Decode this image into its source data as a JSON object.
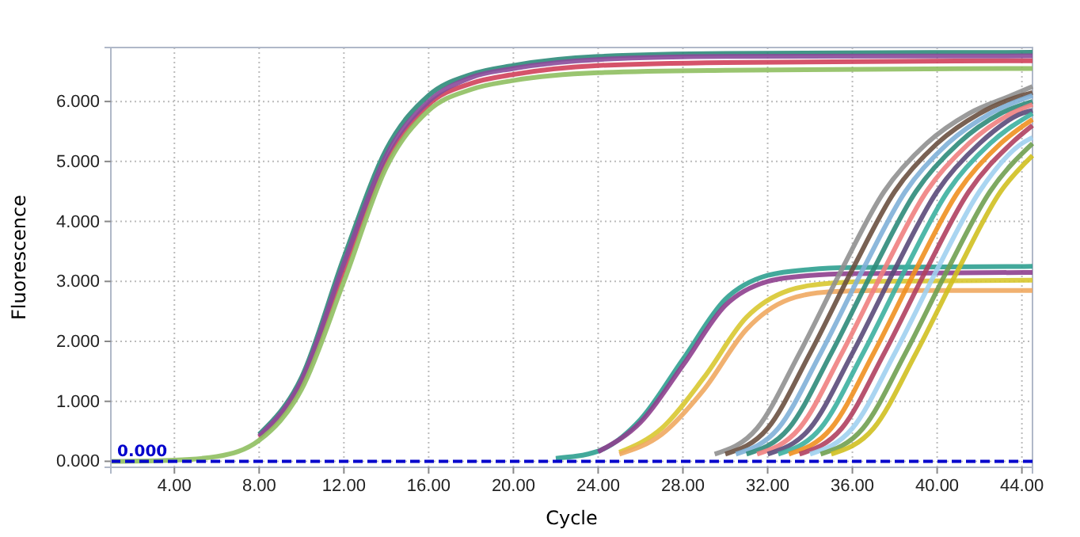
{
  "chart_data": {
    "type": "line",
    "xlabel": "Cycle",
    "ylabel": "Fluorescence",
    "xlim": [
      1,
      44.5
    ],
    "ylim": [
      -0.1,
      6.9
    ],
    "xticks": [
      {
        "value": 4,
        "label": "4.00"
      },
      {
        "value": 8,
        "label": "8.00"
      },
      {
        "value": 12,
        "label": "12.00"
      },
      {
        "value": 16,
        "label": "16.00"
      },
      {
        "value": 20,
        "label": "20.00"
      },
      {
        "value": 24,
        "label": "24.00"
      },
      {
        "value": 28,
        "label": "28.00"
      },
      {
        "value": 32,
        "label": "32.00"
      },
      {
        "value": 36,
        "label": "36.00"
      },
      {
        "value": 40,
        "label": "40.00"
      },
      {
        "value": 44,
        "label": "44.00"
      }
    ],
    "yticks": [
      {
        "value": 0,
        "label": "0.000"
      },
      {
        "value": 1,
        "label": "1.000"
      },
      {
        "value": 2,
        "label": "2.000"
      },
      {
        "value": 3,
        "label": "3.000"
      },
      {
        "value": 4,
        "label": "4.000"
      },
      {
        "value": 5,
        "label": "5.000"
      },
      {
        "value": 6,
        "label": "6.000"
      }
    ],
    "grid": true,
    "marker": "none",
    "line_style": "solid",
    "ref_lines": [
      {
        "axis": "y",
        "value": 0,
        "label": "0.000",
        "color": "#0000cc",
        "line_style": "dashed"
      }
    ],
    "series": [
      {
        "color": "#2e8b7a",
        "x": [
          8,
          10,
          12,
          14,
          16,
          18,
          20,
          24,
          30,
          44.5
        ],
        "values": [
          0.45,
          1.4,
          3.4,
          5.2,
          6.1,
          6.45,
          6.6,
          6.75,
          6.8,
          6.82
        ]
      },
      {
        "color": "#d0405a",
        "x": [
          8,
          10,
          12,
          14,
          16,
          18,
          20,
          24,
          30,
          44.5
        ],
        "values": [
          0.4,
          1.3,
          3.2,
          5.0,
          5.95,
          6.3,
          6.45,
          6.6,
          6.65,
          6.68
        ]
      },
      {
        "color": "#8a4a9a",
        "x": [
          8,
          10,
          12,
          14,
          16,
          18,
          20,
          24,
          30,
          44.5
        ],
        "values": [
          0.42,
          1.35,
          3.3,
          5.1,
          6.0,
          6.4,
          6.55,
          6.7,
          6.75,
          6.76
        ]
      },
      {
        "color": "#8fbf60",
        "x": [
          1,
          4,
          6,
          8,
          10,
          12,
          14,
          16,
          18,
          20,
          24,
          30,
          44.5
        ],
        "values": [
          0,
          0.02,
          0.08,
          0.35,
          1.2,
          3.0,
          4.9,
          5.85,
          6.2,
          6.35,
          6.48,
          6.52,
          6.55
        ]
      },
      {
        "color": "#2fa090",
        "x": [
          22,
          24,
          26,
          28,
          30,
          32,
          34,
          36,
          44.5
        ],
        "values": [
          0.05,
          0.17,
          0.7,
          1.7,
          2.7,
          3.1,
          3.2,
          3.23,
          3.25
        ]
      },
      {
        "color": "#8e3f8e",
        "x": [
          24,
          26,
          28,
          30,
          32,
          34,
          36,
          44.5
        ],
        "values": [
          0.16,
          0.65,
          1.6,
          2.6,
          3.0,
          3.1,
          3.13,
          3.15
        ]
      },
      {
        "color": "#d8c830",
        "x": [
          25,
          27,
          29,
          31,
          33,
          35,
          37,
          44.5
        ],
        "values": [
          0.15,
          0.55,
          1.4,
          2.4,
          2.85,
          2.97,
          3.0,
          3.02
        ]
      },
      {
        "color": "#f0a860",
        "x": [
          25,
          27,
          29,
          31,
          33,
          35,
          37,
          44.5
        ],
        "values": [
          0.12,
          0.45,
          1.2,
          2.2,
          2.7,
          2.83,
          2.85,
          2.85
        ]
      },
      {
        "color": "#909090",
        "x": [
          29.5,
          31.5,
          33.5,
          35.5,
          37.5,
          39.5,
          41.5,
          43.5,
          44.5
        ],
        "values": [
          0.12,
          0.55,
          1.8,
          3.2,
          4.5,
          5.3,
          5.8,
          6.1,
          6.25
        ]
      },
      {
        "color": "#6a5040",
        "x": [
          30,
          32,
          34,
          36,
          38,
          40,
          42,
          44,
          44.5
        ],
        "values": [
          0.12,
          0.55,
          1.8,
          3.2,
          4.5,
          5.3,
          5.8,
          6.1,
          6.15
        ]
      },
      {
        "color": "#80b0d8",
        "x": [
          30.5,
          32.5,
          34.5,
          36.5,
          38.5,
          40.5,
          42.5,
          44.5
        ],
        "values": [
          0.12,
          0.55,
          1.8,
          3.2,
          4.5,
          5.3,
          5.8,
          6.1
        ]
      },
      {
        "color": "#2e8b7a",
        "x": [
          31,
          33,
          35,
          37,
          39,
          41,
          43,
          44.5
        ],
        "values": [
          0.12,
          0.55,
          1.8,
          3.2,
          4.5,
          5.3,
          5.8,
          6.0
        ]
      },
      {
        "color": "#f08080",
        "x": [
          31.5,
          33.5,
          35.5,
          37.5,
          39.5,
          41.5,
          43.5,
          44.5
        ],
        "values": [
          0.12,
          0.55,
          1.8,
          3.2,
          4.5,
          5.3,
          5.8,
          5.95
        ]
      },
      {
        "color": "#5a4a7a",
        "x": [
          32,
          34,
          36,
          38,
          40,
          42,
          44,
          44.5
        ],
        "values": [
          0.12,
          0.55,
          1.8,
          3.2,
          4.5,
          5.3,
          5.8,
          5.85
        ]
      },
      {
        "color": "#3cb0a0",
        "x": [
          32.5,
          34.5,
          36.5,
          38.5,
          40.5,
          42.5,
          44.5
        ],
        "values": [
          0.12,
          0.55,
          1.8,
          3.2,
          4.5,
          5.3,
          5.8
        ]
      },
      {
        "color": "#f09020",
        "x": [
          33,
          35,
          37,
          39,
          41,
          43,
          44.5
        ],
        "values": [
          0.12,
          0.55,
          1.8,
          3.2,
          4.5,
          5.3,
          5.7
        ]
      },
      {
        "color": "#b04060",
        "x": [
          33.5,
          35.5,
          37.5,
          39.5,
          41.5,
          43.5,
          44.5
        ],
        "values": [
          0.12,
          0.55,
          1.8,
          3.2,
          4.5,
          5.3,
          5.6
        ]
      },
      {
        "color": "#a0d0f0",
        "x": [
          34,
          36,
          38,
          40,
          42,
          44,
          44.5
        ],
        "values": [
          0.12,
          0.55,
          1.8,
          3.2,
          4.5,
          5.3,
          5.4
        ]
      },
      {
        "color": "#70a050",
        "x": [
          34.5,
          36.5,
          38.5,
          40.5,
          42.5,
          44.5
        ],
        "values": [
          0.12,
          0.55,
          1.8,
          3.2,
          4.5,
          5.3
        ]
      },
      {
        "color": "#d0c020",
        "x": [
          35,
          37,
          39,
          41,
          43,
          44.5
        ],
        "values": [
          0.12,
          0.55,
          1.8,
          3.2,
          4.5,
          5.1
        ]
      }
    ]
  }
}
